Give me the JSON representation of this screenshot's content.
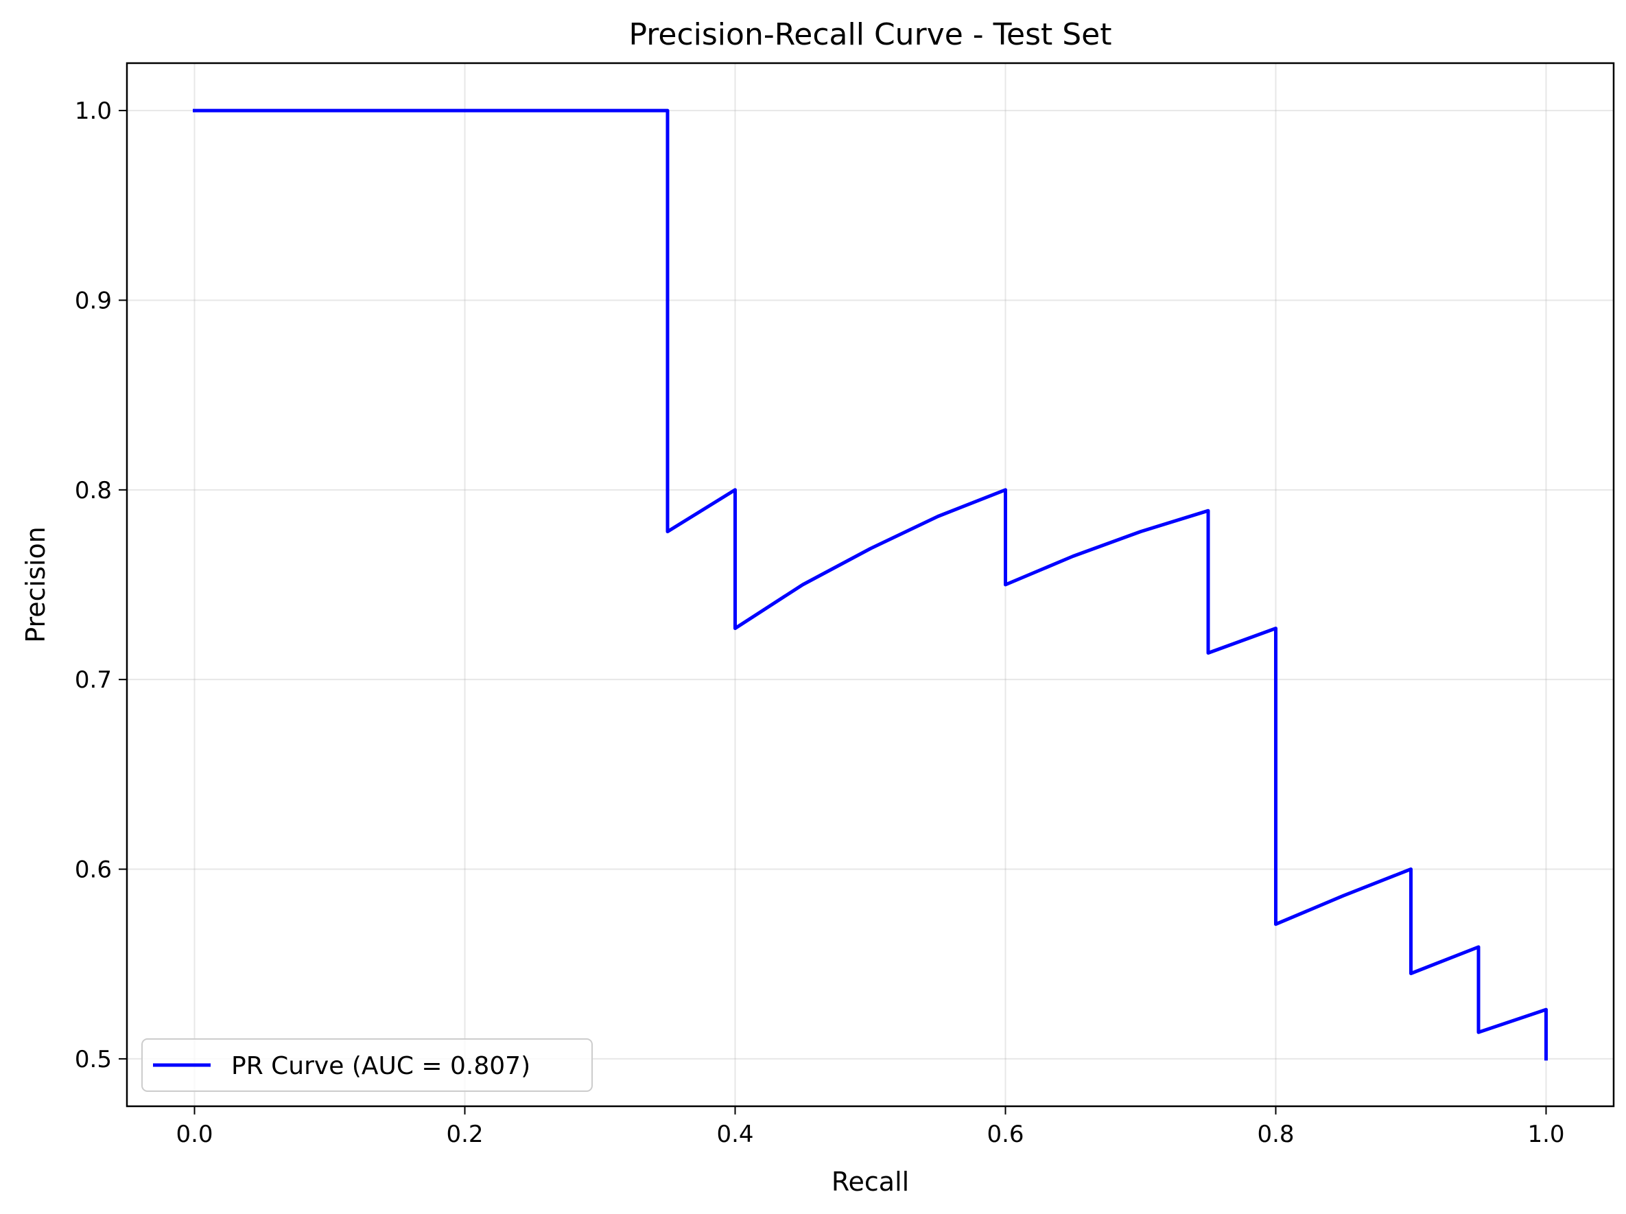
{
  "chart_data": {
    "type": "line",
    "title": "Precision-Recall Curve - Test Set",
    "xlabel": "Recall",
    "ylabel": "Precision",
    "xlim": [
      -0.05,
      1.05
    ],
    "ylim": [
      0.475,
      1.025
    ],
    "xticks": [
      0.0,
      0.2,
      0.4,
      0.6,
      0.8,
      1.0
    ],
    "xtick_labels": [
      "0.0",
      "0.2",
      "0.4",
      "0.6",
      "0.8",
      "1.0"
    ],
    "yticks": [
      0.5,
      0.6,
      0.7,
      0.8,
      0.9,
      1.0
    ],
    "ytick_labels": [
      "0.5",
      "0.6",
      "0.7",
      "0.8",
      "0.9",
      "1.0"
    ],
    "grid": true,
    "legend_position": "lower-left",
    "series": [
      {
        "name": "PR Curve (AUC = 0.807)",
        "color": "#0000ff",
        "points": [
          [
            0.0,
            1.0
          ],
          [
            0.35,
            1.0
          ],
          [
            0.35,
            0.778
          ],
          [
            0.4,
            0.8
          ],
          [
            0.4,
            0.727
          ],
          [
            0.45,
            0.75
          ],
          [
            0.5,
            0.769
          ],
          [
            0.55,
            0.786
          ],
          [
            0.6,
            0.8
          ],
          [
            0.6,
            0.75
          ],
          [
            0.65,
            0.765
          ],
          [
            0.7,
            0.778
          ],
          [
            0.75,
            0.789
          ],
          [
            0.75,
            0.714
          ],
          [
            0.8,
            0.727
          ],
          [
            0.8,
            0.571
          ],
          [
            0.85,
            0.586
          ],
          [
            0.9,
            0.6
          ],
          [
            0.9,
            0.545
          ],
          [
            0.95,
            0.559
          ],
          [
            0.95,
            0.514
          ],
          [
            1.0,
            0.526
          ],
          [
            1.0,
            0.5
          ]
        ]
      }
    ]
  }
}
